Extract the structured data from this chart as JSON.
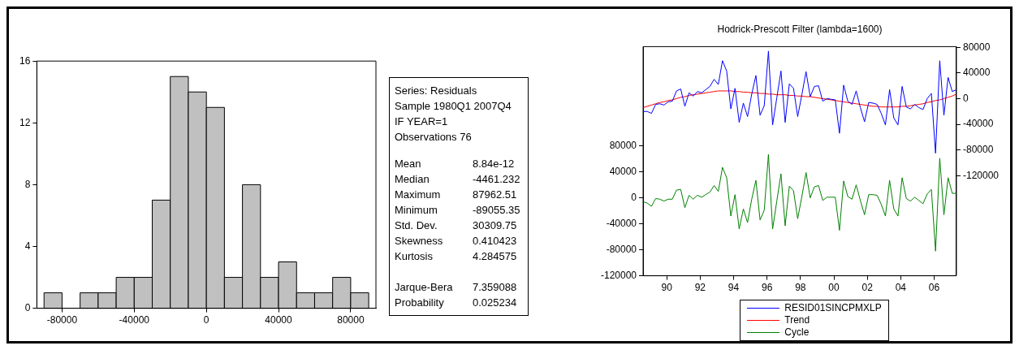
{
  "chart_data": [
    {
      "type": "histogram",
      "bins": [
        -90000,
        -80000,
        -70000,
        -60000,
        -50000,
        -40000,
        -30000,
        -20000,
        -10000,
        0,
        10000,
        20000,
        30000,
        40000,
        50000,
        60000,
        70000,
        80000,
        90000
      ],
      "values": [
        1,
        0,
        1,
        1,
        2,
        2,
        7,
        15,
        14,
        13,
        2,
        8,
        2,
        3,
        1,
        1,
        2,
        1
      ],
      "color": "#c0c0c0",
      "xlim": [
        -94000,
        94000
      ],
      "xticks": [
        -80000,
        -40000,
        0,
        40000,
        80000
      ],
      "ylim": [
        0,
        16
      ],
      "yticks": [
        0,
        4,
        8,
        12,
        16
      ],
      "grid": false
    },
    {
      "type": "other",
      "annotations": [
        "Series: Residuals",
        "Sample 1980Q1 2007Q4 IF YEAR=1",
        "Observations 76",
        "Mean",
        "8.84e-12",
        "Median",
        "-4461.232",
        "Maximum",
        "87962.51",
        "Minimum",
        "-89055.35",
        "Std. Dev.",
        "30309.75",
        "Skewness",
        "0.410423",
        "Kurtosis",
        "4.284575",
        "Jarque-Bera",
        "7.359088",
        "Probability",
        "0.025234"
      ]
    },
    {
      "type": "line",
      "title": "Hodrick-Prescott Filter (lambda=1600)",
      "x": [
        "1989-01",
        "1989-04",
        "1989-07",
        "1989-10",
        "1990-01",
        "1990-04",
        "1990-07",
        "1990-10",
        "1991-01",
        "1991-04",
        "1991-07",
        "1991-10",
        "1992-01",
        "1992-04",
        "1992-07",
        "1992-10",
        "1993-01",
        "1993-04",
        "1993-07",
        "1993-10",
        "1994-01",
        "1994-04",
        "1994-07",
        "1994-10",
        "1995-01",
        "1995-04",
        "1995-07",
        "1995-10",
        "1996-01",
        "1996-04",
        "1996-07",
        "1996-10",
        "1997-01",
        "1997-04",
        "1997-07",
        "1997-10",
        "1998-01",
        "1998-04",
        "1998-07",
        "1998-10",
        "1999-01",
        "1999-04",
        "1999-07",
        "1999-10",
        "2000-01",
        "2000-04",
        "2000-07",
        "2000-10",
        "2001-01",
        "2001-04",
        "2001-07",
        "2001-10",
        "2002-01",
        "2002-04",
        "2002-07",
        "2002-10",
        "2003-01",
        "2003-04",
        "2003-07",
        "2003-10",
        "2004-01",
        "2004-04",
        "2004-07",
        "2004-10",
        "2005-01",
        "2005-04",
        "2005-07",
        "2005-10",
        "2006-01",
        "2006-04",
        "2006-07",
        "2006-10",
        "2007-01",
        "2007-04",
        "2007-07",
        "2007-10"
      ],
      "xlim": [
        "1989-01",
        "2007-10"
      ],
      "xticks": [
        {
          "value": "1990-06",
          "label": "90"
        },
        {
          "value": "1992-06",
          "label": "92"
        },
        {
          "value": "1994-06",
          "label": "94"
        },
        {
          "value": "1996-06",
          "label": "96"
        },
        {
          "value": "1998-06",
          "label": "98"
        },
        {
          "value": "2000-06",
          "label": "00"
        },
        {
          "value": "2002-06",
          "label": "02"
        },
        {
          "value": "2004-06",
          "label": "04"
        },
        {
          "value": "2006-06",
          "label": "06"
        }
      ],
      "ylim": [
        -120000,
        233000
      ],
      "yticks": [
        -120000,
        -80000,
        -40000,
        0,
        40000,
        80000
      ],
      "y2lim": [
        -276000,
        81000
      ],
      "y2ticks": [
        -120000,
        -80000,
        -40000,
        0,
        40000,
        80000
      ],
      "legend": "bottom",
      "grid": false,
      "series": [
        {
          "name": "RESID01SINCPMXLP",
          "color": "#0000ff",
          "axis": "y2",
          "values": [
            -20000,
            -20000,
            -23000,
            -9000,
            -8000,
            -10000,
            -5000,
            -4000,
            12000,
            15000,
            -12000,
            9000,
            4000,
            11000,
            9000,
            14000,
            19000,
            30000,
            22000,
            59000,
            43000,
            -16000,
            16000,
            -37000,
            -7000,
            -28000,
            7000,
            36000,
            -26000,
            -11000,
            74000,
            -41000,
            1000,
            43000,
            -37000,
            23000,
            16000,
            -28000,
            6000,
            42000,
            3000,
            19000,
            20000,
            -4000,
            0,
            -1000,
            -2000,
            -54000,
            21000,
            -4000,
            -9000,
            12000,
            -14000,
            -36000,
            -6000,
            -7000,
            -9000,
            -23000,
            -41000,
            14000,
            -30000,
            -41000,
            19000,
            -13000,
            -16000,
            -9000,
            -14000,
            -17000,
            0,
            8000,
            -85000,
            59000,
            -26000,
            33000,
            11000,
            14000
          ]
        },
        {
          "name": "Trend",
          "color": "#ff0000",
          "axis": "y2",
          "values": [
            -14000,
            -12000,
            -10000,
            -8000,
            -6000,
            -5000,
            -3000,
            -2000,
            0,
            2000,
            3000,
            5000,
            6000,
            7000,
            8000,
            9000,
            10000,
            11000,
            12000,
            12000,
            12000,
            12000,
            11000,
            11000,
            10000,
            10000,
            9000,
            9000,
            8000,
            8000,
            7000,
            7000,
            6000,
            6000,
            6000,
            5000,
            5000,
            4000,
            4000,
            3000,
            3000,
            2000,
            1000,
            0,
            -1000,
            -2000,
            -3000,
            -4000,
            -5000,
            -6000,
            -7000,
            -8000,
            -9000,
            -10000,
            -11000,
            -12000,
            -12000,
            -13000,
            -13000,
            -13000,
            -13000,
            -13000,
            -12000,
            -12000,
            -11000,
            -10000,
            -9000,
            -8000,
            -6000,
            -5000,
            -3000,
            -2000,
            0,
            2000,
            4000,
            7000
          ]
        },
        {
          "name": "Cycle",
          "color": "#008000",
          "axis": "y",
          "values": [
            -6000,
            -8000,
            -13000,
            -1000,
            -2000,
            -5000,
            -2000,
            -2000,
            12000,
            13000,
            -15000,
            4000,
            -2000,
            4000,
            1000,
            5000,
            9000,
            19000,
            10000,
            47000,
            31000,
            -28000,
            5000,
            -48000,
            -17000,
            -38000,
            -2000,
            27000,
            -34000,
            -19000,
            67000,
            -48000,
            -5000,
            37000,
            -43000,
            18000,
            11000,
            -32000,
            2000,
            39000,
            0,
            17000,
            19000,
            -4000,
            1000,
            1000,
            1000,
            -50000,
            26000,
            2000,
            -2000,
            20000,
            -4000,
            -26000,
            5000,
            5000,
            4000,
            -10000,
            -28000,
            27000,
            -17000,
            -28000,
            31000,
            -1000,
            -5000,
            1000,
            -4000,
            -9000,
            6000,
            13000,
            -82000,
            61000,
            -26000,
            31000,
            7000,
            7000
          ]
        }
      ]
    }
  ]
}
